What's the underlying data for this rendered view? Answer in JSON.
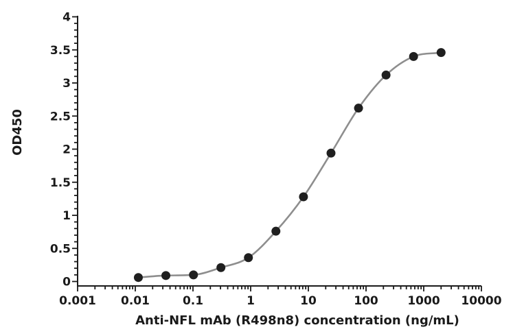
{
  "chart_data": {
    "type": "scatter",
    "title": "",
    "xlabel": "Anti-NFL mAb (R498n8) concentration (ng/mL)",
    "ylabel": "OD450",
    "x_scale": "log10",
    "xlim": [
      0.001,
      10000
    ],
    "ylim": [
      0,
      4
    ],
    "grid": false,
    "legend": "none",
    "x_major_tick_labels": [
      "0.001",
      "0.01",
      "0.1",
      "1",
      "10",
      "100",
      "1000",
      "10000"
    ],
    "y_major_tick_labels": [
      "0",
      "0.5",
      "1",
      "1.5",
      "2",
      "2.5",
      "3",
      "3.5",
      "4"
    ],
    "y_minor_step": 0.1,
    "x_minor_ticks": "log-decade-2-to-9",
    "series": [
      {
        "style": "filled-circle-markers-with-smooth-fit-line",
        "x": [
          0.0113,
          0.0339,
          0.102,
          0.305,
          0.914,
          2.74,
          8.23,
          24.7,
          74.1,
          222.2,
          666.7,
          2000
        ],
        "y": [
          0.06,
          0.09,
          0.1,
          0.21,
          0.36,
          0.76,
          1.28,
          1.94,
          2.62,
          3.12,
          3.4,
          3.46
        ]
      }
    ],
    "colors": {
      "marker": "#1f1f1f",
      "fit_line": "#8e8e8e",
      "axis": "#1a1a1a",
      "text": "#1a1a1a",
      "background": "#ffffff"
    }
  }
}
